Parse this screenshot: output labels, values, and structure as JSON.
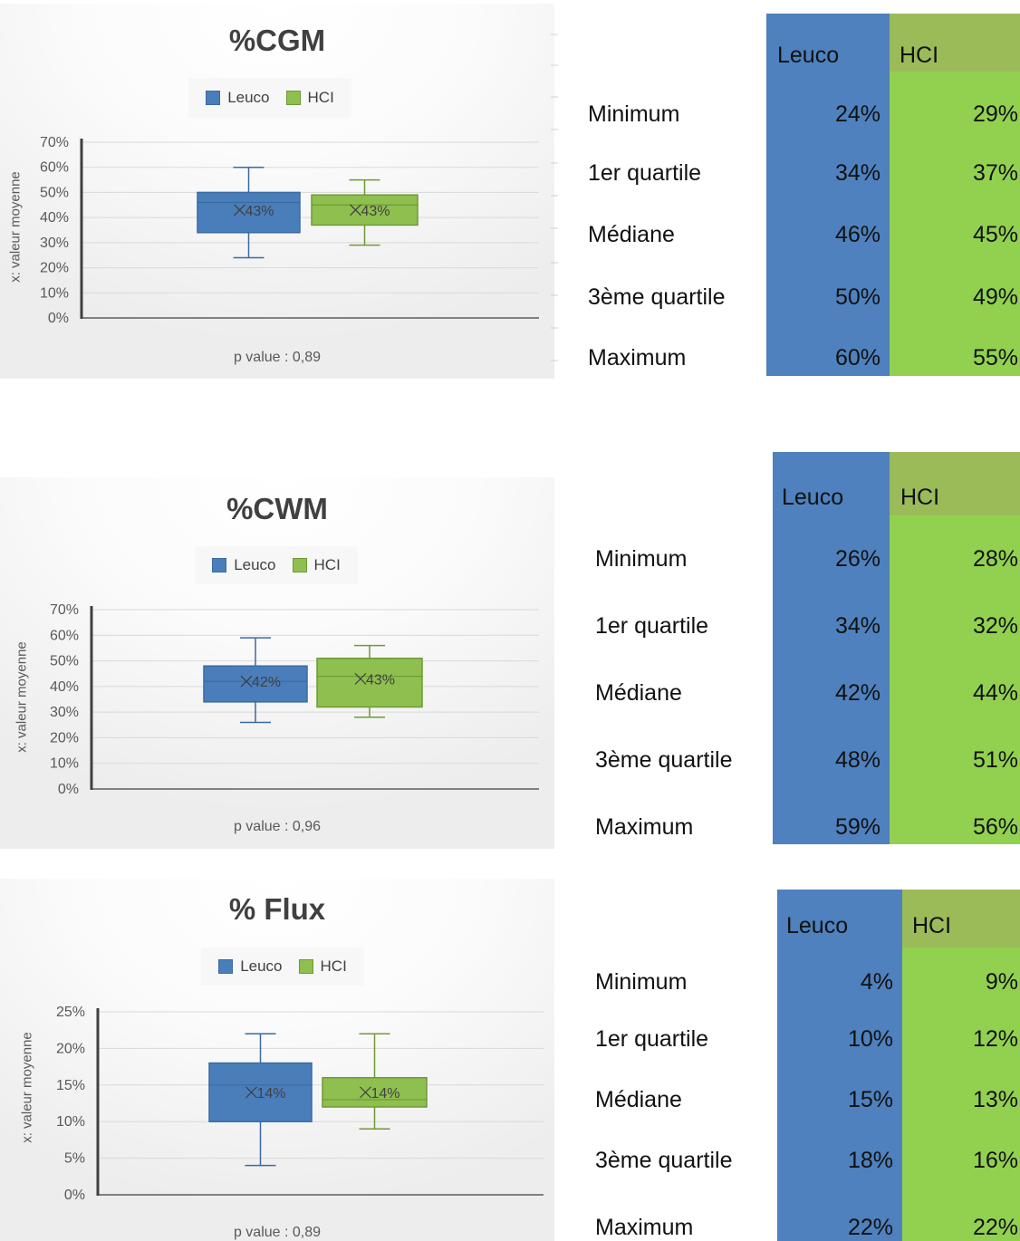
{
  "colors": {
    "leuco": "#4e81bd",
    "leuco_header": "#4f81bd",
    "hci": "#92d050",
    "hci_header": "#9bbb59",
    "box_leuco_fill": "#4a7ebb",
    "box_leuco_stroke": "#3a6aa2",
    "box_hci_fill": "#8fbf4f",
    "box_hci_stroke": "#6f9a37"
  },
  "table_headers": {
    "leuco": "Leuco",
    "hci": "HCI"
  },
  "row_labels": [
    "Minimum",
    "1er quartile",
    "Médiane",
    "3ème quartile",
    "Maximum"
  ],
  "panels": [
    {
      "chart_data": {
        "type": "box",
        "title": "%CGM",
        "ylabel": "x: valeur moyenne",
        "ylim": [
          0,
          70
        ],
        "y_ticks": [
          "0%",
          "10%",
          "20%",
          "30%",
          "40%",
          "50%",
          "60%",
          "70%"
        ],
        "y_tick_values": [
          0,
          10,
          20,
          30,
          40,
          50,
          60,
          70
        ],
        "legend": [
          "Leuco",
          "HCI"
        ],
        "annotation": "p value : 0,89",
        "series": [
          {
            "name": "Leuco",
            "min": 24,
            "q1": 34,
            "median": 46,
            "q3": 50,
            "max": 60,
            "mean": 43,
            "mean_label": "43%"
          },
          {
            "name": "HCI",
            "min": 29,
            "q1": 37,
            "median": 45,
            "q3": 49,
            "max": 55,
            "mean": 43,
            "mean_label": "43%"
          }
        ]
      },
      "table": {
        "leuco": [
          "24%",
          "34%",
          "46%",
          "50%",
          "60%"
        ],
        "hci": [
          "29%",
          "37%",
          "45%",
          "49%",
          "55%"
        ]
      }
    },
    {
      "chart_data": {
        "type": "box",
        "title": "%CWM",
        "ylabel": "x: valeur moyenne",
        "ylim": [
          0,
          70
        ],
        "y_ticks": [
          "0%",
          "10%",
          "20%",
          "30%",
          "40%",
          "50%",
          "60%",
          "70%"
        ],
        "y_tick_values": [
          0,
          10,
          20,
          30,
          40,
          50,
          60,
          70
        ],
        "legend": [
          "Leuco",
          "HCI"
        ],
        "annotation": "p value : 0,96",
        "series": [
          {
            "name": "Leuco",
            "min": 26,
            "q1": 34,
            "median": 42,
            "q3": 48,
            "max": 59,
            "mean": 42,
            "mean_label": "42%"
          },
          {
            "name": "HCI",
            "min": 28,
            "q1": 32,
            "median": 44,
            "q3": 51,
            "max": 56,
            "mean": 43,
            "mean_label": "43%"
          }
        ]
      },
      "table": {
        "leuco": [
          "26%",
          "34%",
          "42%",
          "48%",
          "59%"
        ],
        "hci": [
          "28%",
          "32%",
          "44%",
          "51%",
          "56%"
        ]
      }
    },
    {
      "chart_data": {
        "type": "box",
        "title": "% Flux",
        "ylabel": "x: valeur moyenne",
        "ylim": [
          0,
          25
        ],
        "y_ticks": [
          "0%",
          "5%",
          "10%",
          "15%",
          "20%",
          "25%"
        ],
        "y_tick_values": [
          0,
          5,
          10,
          15,
          20,
          25
        ],
        "legend": [
          "Leuco",
          "HCI"
        ],
        "annotation": "p value : 0,89",
        "series": [
          {
            "name": "Leuco",
            "min": 4,
            "q1": 10,
            "median": 15,
            "q3": 18,
            "max": 22,
            "mean": 14,
            "mean_label": "14%"
          },
          {
            "name": "HCI",
            "min": 9,
            "q1": 12,
            "median": 13,
            "q3": 16,
            "max": 22,
            "mean": 14,
            "mean_label": "14%"
          }
        ]
      },
      "table": {
        "leuco": [
          "4%",
          "10%",
          "15%",
          "18%",
          "22%"
        ],
        "hci": [
          "9%",
          "12%",
          "13%",
          "16%",
          "22%"
        ]
      }
    }
  ]
}
